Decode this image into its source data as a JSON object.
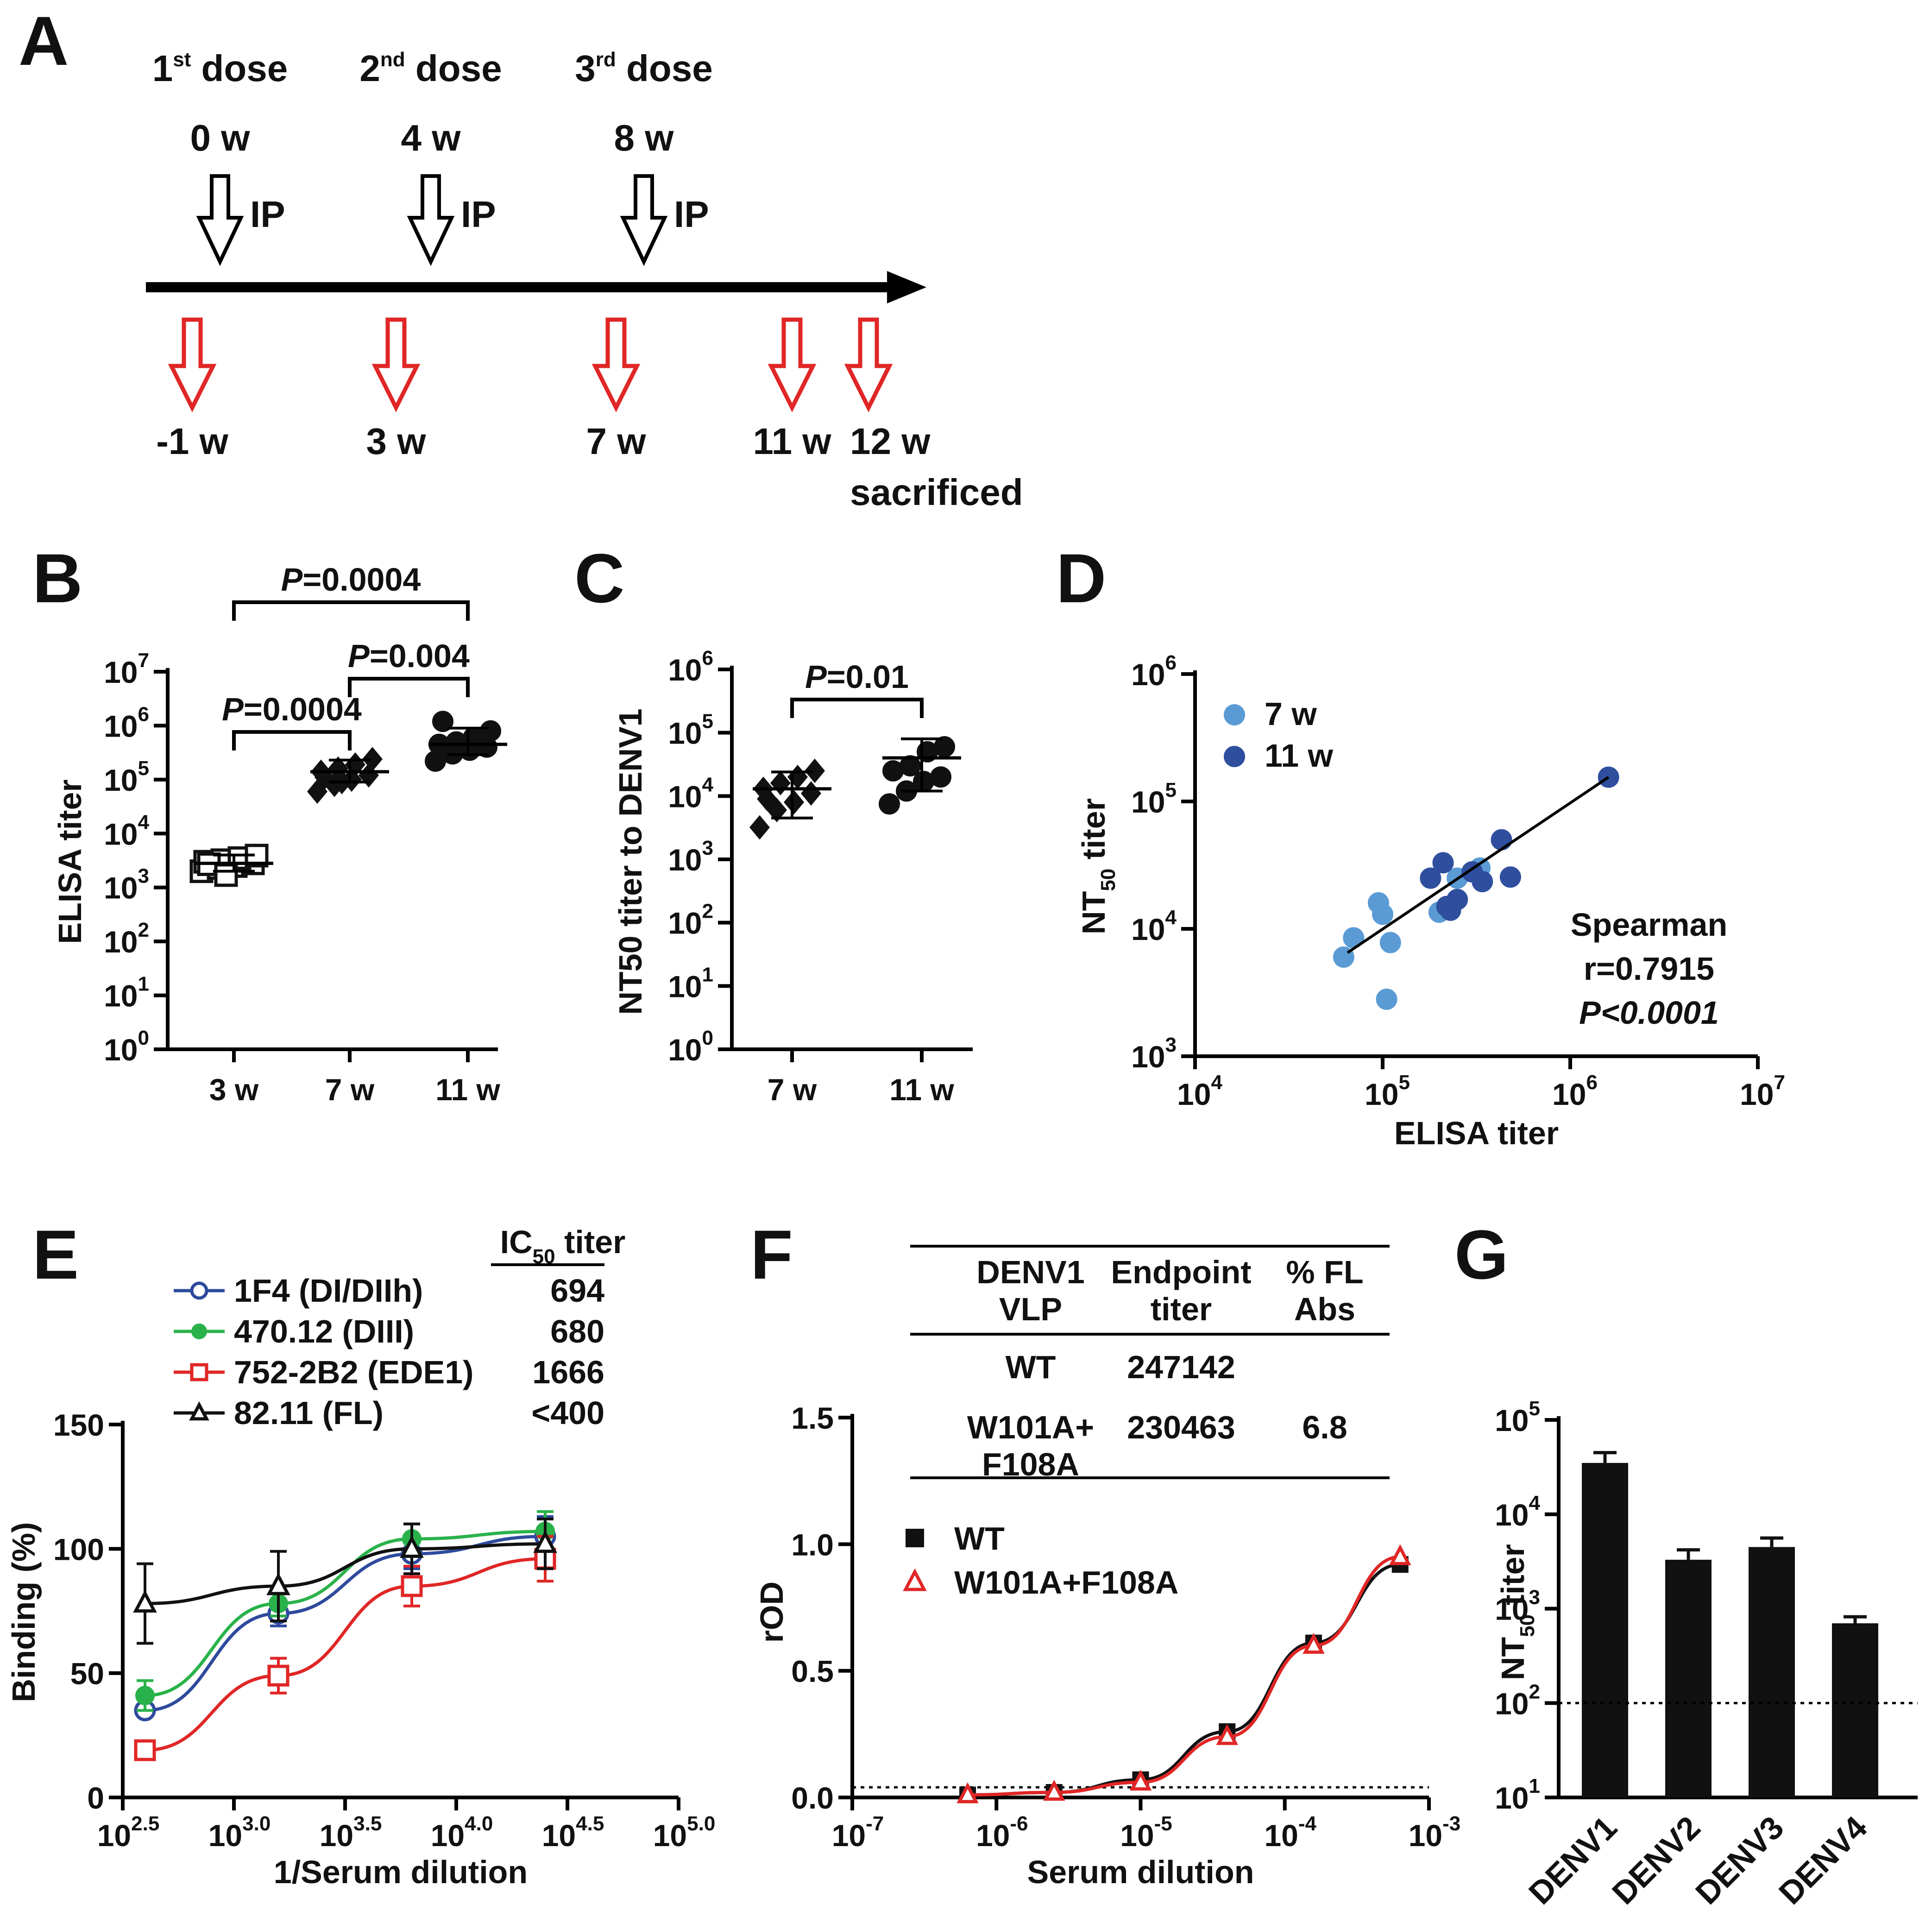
{
  "panel_a": {
    "label": "A",
    "doses": [
      {
        "label": "1",
        "sup": "st",
        "rest": " dose",
        "time": "0 w",
        "route": "IP"
      },
      {
        "label": "2",
        "sup": "nd",
        "rest": " dose",
        "time": "4 w",
        "route": "IP"
      },
      {
        "label": "3",
        "sup": "rd",
        "rest": " dose",
        "time": "8 w",
        "route": "IP"
      }
    ],
    "bleeds": [
      "-1 w",
      "3 w",
      "7 w",
      "11 w",
      "12 w"
    ],
    "sacrificed": "sacrificed"
  },
  "chart_data": [
    {
      "panel": "B",
      "type": "scatter",
      "ylabel": "ELISA titer",
      "yscale": "log",
      "ylim_exp": [
        0,
        7
      ],
      "categories": [
        "3 w",
        "7 w",
        "11 w"
      ],
      "means": [
        2800,
        140000,
        450000
      ],
      "sd_low": [
        2000,
        90000,
        290000
      ],
      "sd_high": [
        4000,
        230000,
        900000
      ],
      "points": [
        [
          2000,
          2300,
          2500,
          2800,
          3000,
          3200,
          3500,
          3900,
          2700,
          1700
        ],
        [
          60000,
          80000,
          100000,
          120000,
          140000,
          160000,
          190000,
          240000,
          110000,
          90000
        ],
        [
          220000,
          300000,
          350000,
          400000,
          450000,
          500000,
          600000,
          800000,
          1200000,
          420000
        ]
      ],
      "comparisons": [
        {
          "label": "P=0.0004",
          "from": 0,
          "to": 1
        },
        {
          "label": "P=0.004",
          "from": 1,
          "to": 2
        },
        {
          "label": "P=0.0004",
          "from": 0,
          "to": 2
        }
      ]
    },
    {
      "panel": "C",
      "type": "scatter",
      "ylabel": "NT50 titer to DENV1",
      "yscale": "log",
      "ylim_exp": [
        0,
        6
      ],
      "categories": [
        "7 w",
        "11 w"
      ],
      "means": [
        13000,
        40000
      ],
      "sd_low": [
        4500,
        12000
      ],
      "sd_high": [
        24000,
        80000
      ],
      "points": [
        [
          3200,
          6000,
          8000,
          11000,
          13000,
          16000,
          20000,
          25000,
          9000
        ],
        [
          7500,
          12000,
          17000,
          20000,
          25000,
          30000,
          50000,
          60000
        ]
      ],
      "comparisons": [
        {
          "label": "P=0.01",
          "from": 0,
          "to": 1
        }
      ]
    },
    {
      "panel": "D",
      "type": "scatter",
      "xlabel": "ELISA titer",
      "ylabel": "NT50 titer",
      "xlim_exp": [
        4,
        7
      ],
      "ylim_exp": [
        3,
        6
      ],
      "series": [
        {
          "name": "7 w",
          "color": "#5b9bd5",
          "points": [
            [
              62000,
              6000
            ],
            [
              70000,
              8500
            ],
            [
              95000,
              16000
            ],
            [
              100000,
              13000
            ],
            [
              110000,
              7800
            ],
            [
              105000,
              2800
            ],
            [
              200000,
              13500
            ],
            [
              250000,
              25000
            ],
            [
              330000,
              30000
            ]
          ]
        },
        {
          "name": "11 w",
          "color": "#2f4f9e",
          "points": [
            [
              180000,
              25000
            ],
            [
              210000,
              33000
            ],
            [
              230000,
              14000
            ],
            [
              250000,
              17000
            ],
            [
              300000,
              28000
            ],
            [
              340000,
              23500
            ],
            [
              430000,
              50000
            ],
            [
              480000,
              25500
            ],
            [
              1600000,
              155000
            ],
            [
              220000,
              15000
            ]
          ]
        }
      ],
      "fit": [
        [
          65000,
          6500
        ],
        [
          1600000,
          155000
        ]
      ],
      "stats": {
        "line1": "Spearman",
        "line2": "r=0.7915",
        "line3": "P<0.0001"
      }
    },
    {
      "panel": "E",
      "type": "line",
      "xlabel": "1/Serum dilution",
      "ylabel": "Binding (%)",
      "xlim_exp": [
        2.5,
        5.0
      ],
      "ylim": [
        0,
        150
      ],
      "xtick_exps": [
        "2.5",
        "3.0",
        "3.5",
        "4.0",
        "4.5",
        "5.0"
      ],
      "yticks": [
        "0",
        "50",
        "100",
        "150"
      ],
      "table_header": "IC",
      "series": [
        {
          "name": "1F4 (DI/DIIh)",
          "ic50": "694",
          "color": "#2e4a9e",
          "marker": "open-circle",
          "x": [
            2.6,
            3.2,
            3.8,
            4.4
          ],
          "y": [
            35,
            74,
            98,
            105
          ],
          "err": [
            0,
            5,
            6,
            8
          ]
        },
        {
          "name": "470.12 (DIII)",
          "ic50": "680",
          "color": "#2ab24a",
          "marker": "filled-circle",
          "x": [
            2.6,
            3.2,
            3.8,
            4.4
          ],
          "y": [
            41,
            78,
            104,
            107
          ],
          "err": [
            6,
            5,
            6,
            8
          ]
        },
        {
          "name": "752-2B2 (EDE1)",
          "ic50": "1666",
          "color": "#e02626",
          "marker": "open-square",
          "x": [
            2.6,
            3.2,
            3.8,
            4.4
          ],
          "y": [
            19,
            49,
            85,
            96
          ],
          "err": [
            0,
            7,
            8,
            9
          ]
        },
        {
          "name": "82.11 (FL)",
          "ic50": "<400",
          "color": "#111111",
          "marker": "open-triangle",
          "x": [
            2.6,
            3.2,
            3.8,
            4.4
          ],
          "y": [
            78,
            85,
            100,
            102
          ],
          "err": [
            16,
            14,
            10,
            10
          ]
        }
      ]
    },
    {
      "panel": "F",
      "type": "line",
      "xlabel": "Serum dilution",
      "ylabel": "rOD",
      "xlim_exp": [
        -7,
        -3
      ],
      "ylim": [
        0,
        1.5
      ],
      "xtick_exps": [
        "-7",
        "-6",
        "-5",
        "-4",
        "-3"
      ],
      "yticks": [
        "0.0",
        "0.5",
        "1.0",
        "1.5"
      ],
      "table": {
        "headers": [
          [
            "DENV1",
            "VLP"
          ],
          [
            "Endpoint",
            "titer"
          ],
          [
            "% FL",
            "Abs"
          ]
        ],
        "rows": [
          {
            "vlp": [
              "WT"
            ],
            "titer": "247142",
            "fl": ""
          },
          {
            "vlp": [
              "W101A+",
              "F108A"
            ],
            "titer": "230463",
            "fl": "6.8"
          }
        ]
      },
      "cutoff": 0.04,
      "series": [
        {
          "name": "WT",
          "color": "#111111",
          "marker": "filled-square",
          "x": [
            -6.2,
            -5.6,
            -5.0,
            -4.4,
            -3.8,
            -3.2
          ],
          "y": [
            0.01,
            0.02,
            0.07,
            0.26,
            0.61,
            0.92
          ]
        },
        {
          "name": "W101A+F108A",
          "color": "#e02626",
          "marker": "open-triangle",
          "x": [
            -6.2,
            -5.6,
            -5.0,
            -4.4,
            -3.8,
            -3.2
          ],
          "y": [
            0.01,
            0.02,
            0.06,
            0.24,
            0.6,
            0.95
          ]
        }
      ]
    },
    {
      "panel": "G",
      "type": "bar",
      "ylabel": "NT50 titer",
      "yscale": "log",
      "ylim_exp": [
        1,
        5
      ],
      "categories": [
        "DENV1",
        "DENV2",
        "DENV3",
        "DENV4"
      ],
      "values": [
        35000,
        3300,
        4500,
        700
      ],
      "err_high": [
        45000,
        4200,
        5600,
        820
      ],
      "cutoff": 100
    }
  ]
}
